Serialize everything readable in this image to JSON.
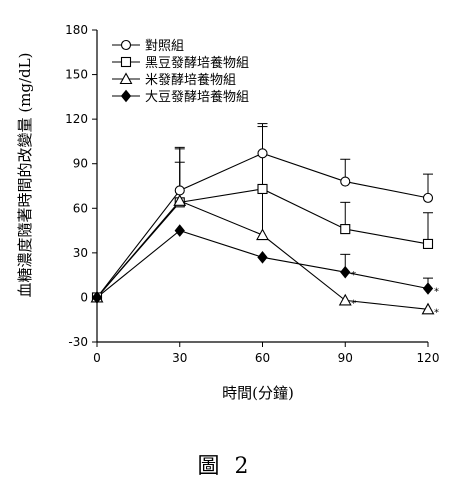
{
  "figure": {
    "caption": "圖 2"
  },
  "chart_data": {
    "type": "line",
    "xlabel": "時間(分鐘)",
    "ylabel": "血糖濃度隨著時間的改變量 (mg/dL)",
    "x": [
      0,
      30,
      60,
      90,
      120
    ],
    "xlim": [
      0,
      120
    ],
    "ylim": [
      -30,
      180
    ],
    "xticks": [
      0,
      30,
      60,
      90,
      120
    ],
    "yticks": [
      -30,
      0,
      30,
      60,
      90,
      120,
      150,
      180
    ],
    "legend_position": "top-left",
    "significance_marker": "*",
    "series": [
      {
        "name": "對照組",
        "marker": "open-circle",
        "values": [
          0,
          72,
          97,
          78,
          67
        ],
        "error": [
          0,
          28,
          20,
          15,
          16
        ],
        "significant": [
          false,
          false,
          false,
          false,
          false
        ]
      },
      {
        "name": "黑豆發酵培養物組",
        "marker": "open-square",
        "values": [
          0,
          64,
          73,
          46,
          36
        ],
        "error": [
          0,
          37,
          42,
          18,
          21
        ],
        "significant": [
          false,
          false,
          false,
          false,
          false
        ]
      },
      {
        "name": "米發酵培養物組",
        "marker": "open-triangle",
        "values": [
          0,
          65,
          42,
          -2,
          -8
        ],
        "error": [
          0,
          26,
          28,
          0,
          0
        ],
        "significant": [
          false,
          false,
          false,
          true,
          true
        ]
      },
      {
        "name": "大豆發酵培養物組",
        "marker": "filled-diamond",
        "values": [
          0,
          45,
          27,
          17,
          6
        ],
        "error": [
          0,
          0,
          0,
          12,
          7
        ],
        "significant": [
          false,
          false,
          false,
          true,
          true
        ]
      }
    ]
  }
}
